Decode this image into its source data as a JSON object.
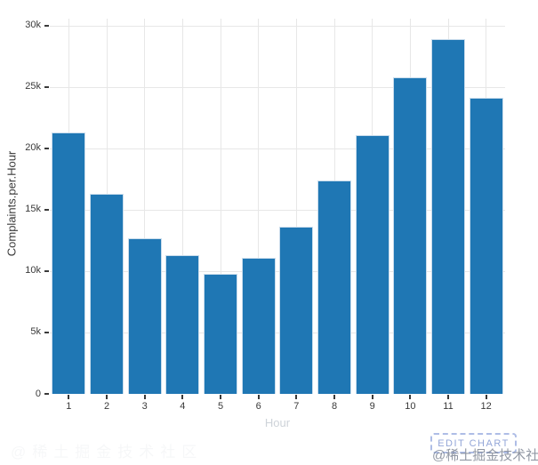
{
  "watermark": {
    "text": "@稀土掘金技术社区"
  },
  "edit_chart_button": {
    "label": "EDIT CHART"
  },
  "chart_data": {
    "type": "bar",
    "title": "",
    "xlabel": "Hour",
    "ylabel": "Complaints.per.Hour",
    "categories": [
      "1",
      "2",
      "3",
      "4",
      "5",
      "6",
      "7",
      "8",
      "9",
      "10",
      "11",
      "12"
    ],
    "values": [
      21300,
      16300,
      12700,
      11300,
      9800,
      11100,
      13600,
      17400,
      21100,
      25800,
      28900,
      24100
    ],
    "ylim": [
      0,
      31000
    ],
    "yticks": [
      0,
      5000,
      10000,
      15000,
      20000,
      25000,
      30000
    ],
    "ytick_labels": [
      "0",
      "5k",
      "10k",
      "15k",
      "20k",
      "25k",
      "30k"
    ],
    "grid": true,
    "legend": "none",
    "bar_color": "#1f77b4",
    "bar_border_color": "#c9dcec",
    "grid_color": "#e7e7e7"
  }
}
